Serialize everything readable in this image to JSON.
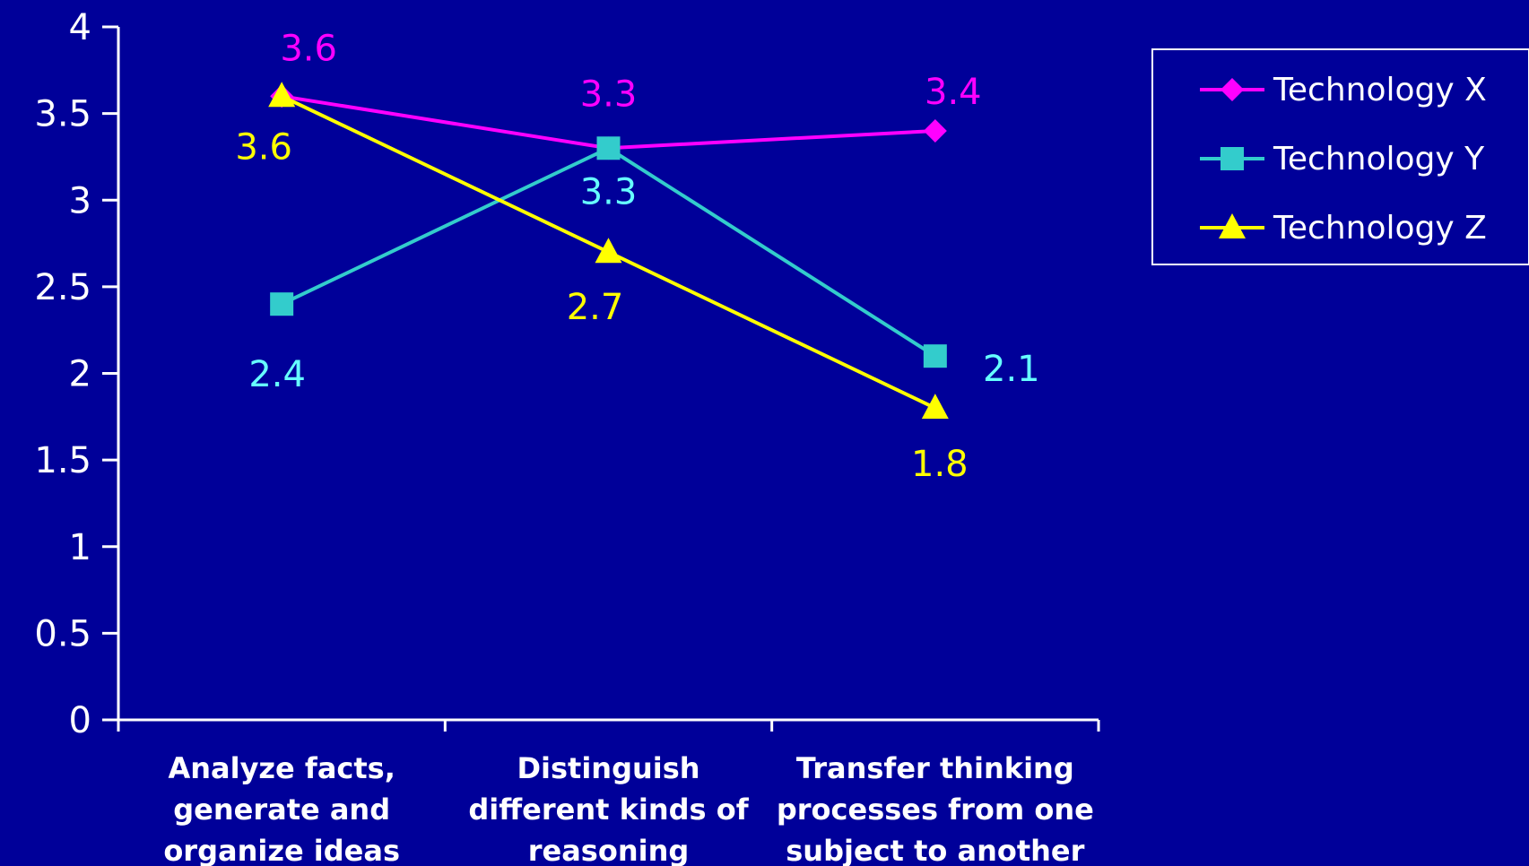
{
  "chart_data": {
    "type": "line",
    "categories": [
      [
        "Analyze facts,",
        "generate and",
        "organize ideas"
      ],
      [
        "Distinguish",
        "different kinds of",
        "reasoning"
      ],
      [
        "Transfer thinking",
        "processes from one",
        "subject to another"
      ]
    ],
    "ylim": [
      0,
      4
    ],
    "yticks": [
      "0",
      "0.5",
      "1",
      "1.5",
      "2",
      "2.5",
      "3",
      "3.5",
      "4"
    ],
    "legend_position": "top-right",
    "grid": false,
    "series": [
      {
        "name": "Technology X",
        "values": [
          3.6,
          3.3,
          3.4
        ],
        "labels": [
          "3.6",
          "3.3",
          "3.4"
        ],
        "color": "#ff00ff",
        "marker": "diamond"
      },
      {
        "name": "Technology Y",
        "values": [
          2.4,
          3.3,
          2.1
        ],
        "labels": [
          "2.4",
          "3.3",
          "2.1"
        ],
        "color": "#33cccc",
        "marker": "square"
      },
      {
        "name": "Technology Z",
        "values": [
          3.6,
          2.7,
          1.8
        ],
        "labels": [
          "3.6",
          "2.7",
          "1.8"
        ],
        "color": "#ffff00",
        "marker": "triangle"
      }
    ]
  },
  "colors": {
    "background": "#000099",
    "axis": "#ffffff",
    "text": "#ffffff",
    "label_x": "#ff00ff",
    "label_y": "#66ffff",
    "label_z": "#ffff00"
  }
}
